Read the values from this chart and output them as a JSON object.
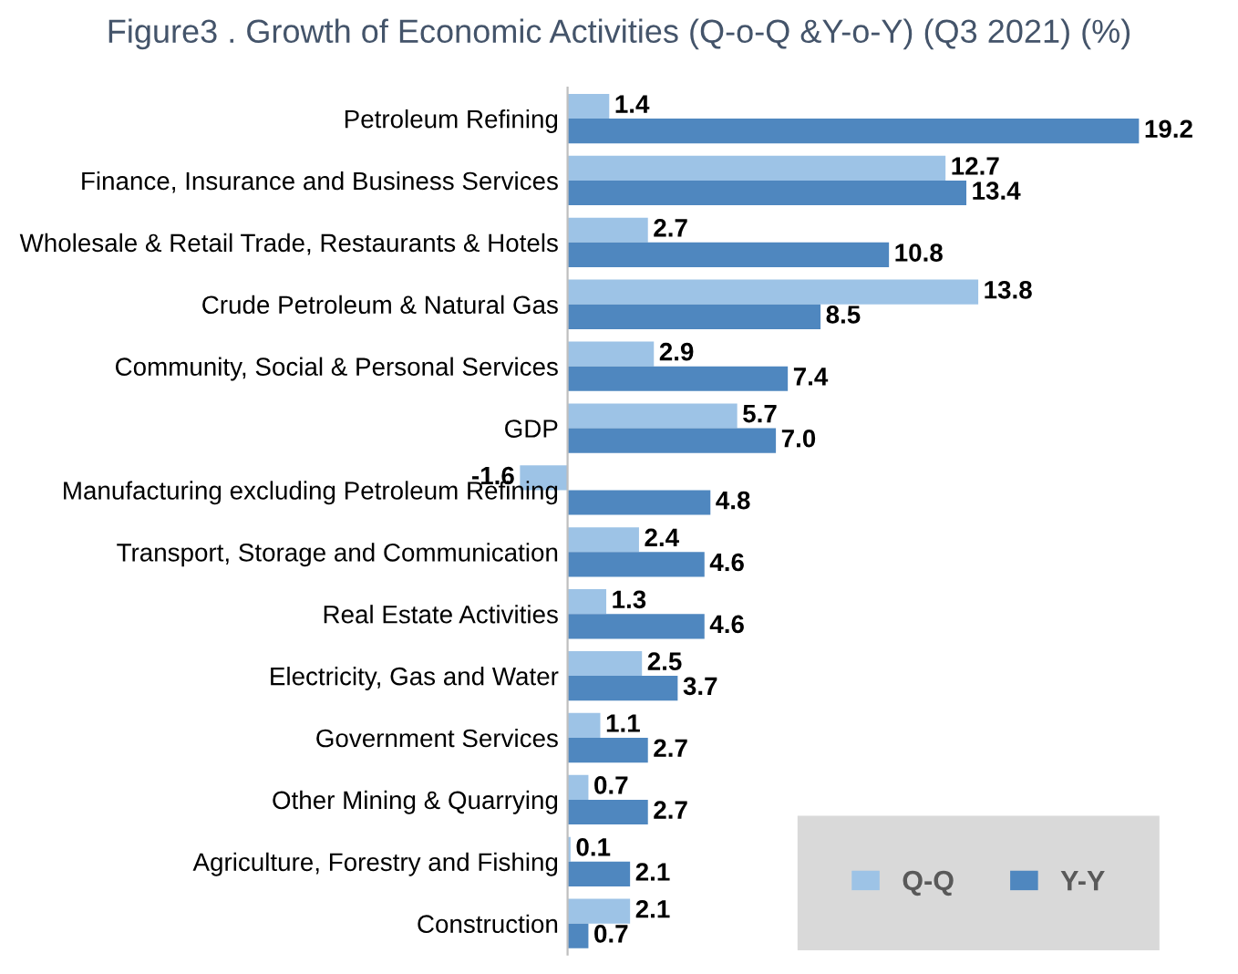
{
  "chart_data": {
    "type": "bar",
    "orientation": "horizontal",
    "title": "Figure3 . Growth of Economic Activities (Q-o-Q &Y-o-Y) (Q3 2021) (%)",
    "categories": [
      "Petroleum Refining",
      "Finance, Insurance and Business Services",
      "Wholesale & Retail Trade, Restaurants & Hotels",
      "Crude Petroleum & Natural Gas",
      "Community, Social & Personal Services",
      "GDP",
      "Manufacturing excluding Petroleum Refining",
      "Transport, Storage and Communication",
      "Real Estate Activities",
      "Electricity, Gas and Water",
      "Government Services",
      "Other Mining & Quarrying",
      "Agriculture, Forestry and Fishing",
      "Construction"
    ],
    "series": [
      {
        "name": "Q-Q",
        "color": "#9dc3e6",
        "values": [
          1.4,
          12.7,
          2.7,
          13.8,
          2.9,
          5.7,
          -1.6,
          2.4,
          1.3,
          2.5,
          1.1,
          0.7,
          0.1,
          2.1
        ]
      },
      {
        "name": "Y-Y",
        "color": "#4f87bf",
        "values": [
          19.2,
          13.4,
          10.8,
          8.5,
          7.4,
          7.0,
          4.8,
          4.6,
          4.6,
          3.7,
          2.7,
          2.7,
          2.1,
          0.7
        ],
        "value_labels": [
          "19.2",
          "13.4",
          "10.8",
          "8.5",
          "7.4",
          "7.0",
          "4.8",
          "4.6",
          "4.6",
          "3.7",
          "2.7",
          "2.7",
          "2.1",
          "0.7"
        ]
      }
    ],
    "data_labels": true,
    "legend": "bottom right",
    "grid": false
  }
}
